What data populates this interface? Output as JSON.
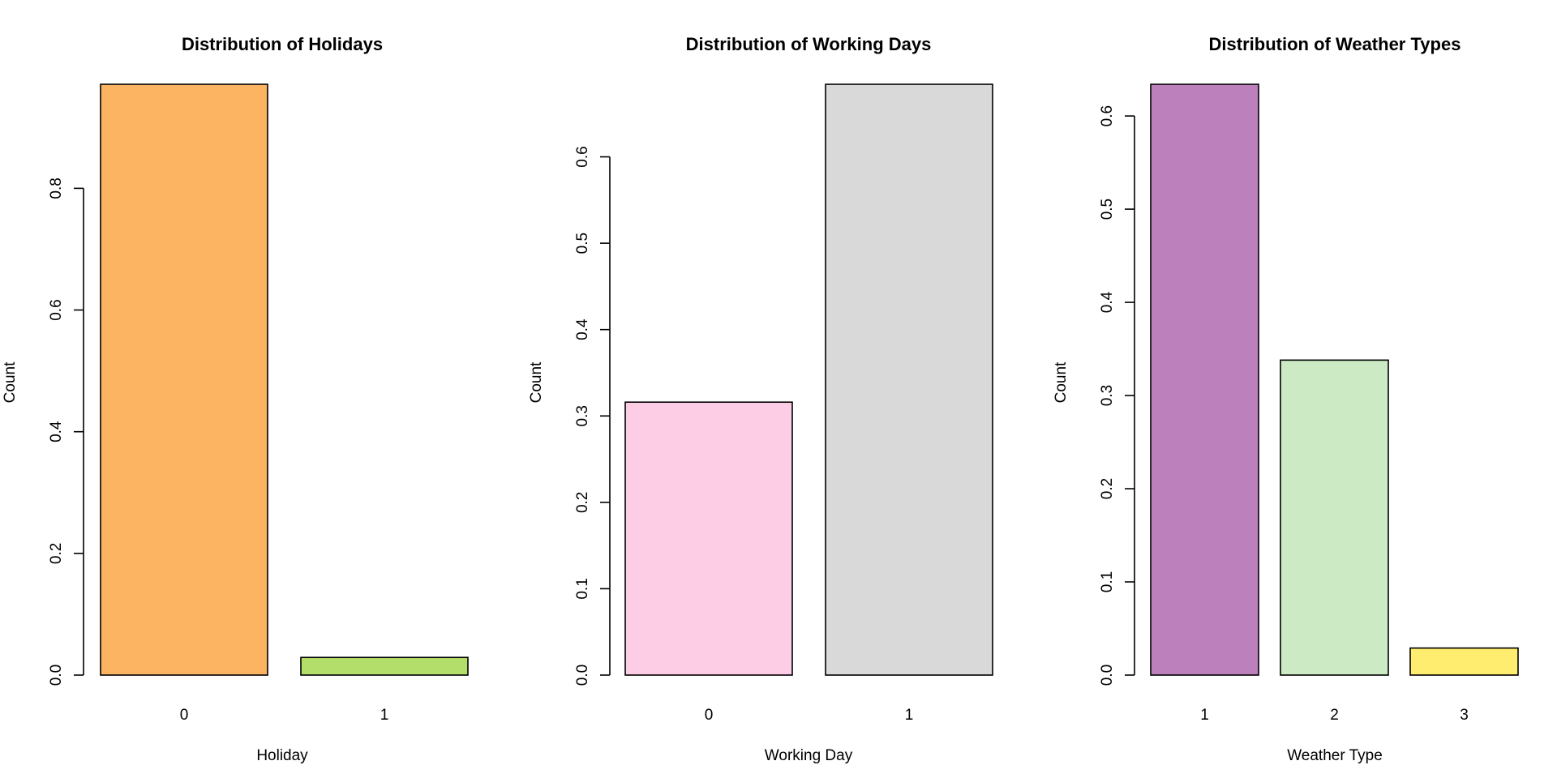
{
  "chart_data": [
    {
      "type": "bar",
      "title": "Distribution of Holidays",
      "xlabel": "Holiday",
      "ylabel": "Count",
      "categories": [
        "0",
        "1"
      ],
      "values": [
        0.971,
        0.029
      ],
      "colors": [
        "#FDB462",
        "#B3DE69"
      ],
      "ylim": [
        0,
        0.971
      ],
      "yticks": [
        0.0,
        0.2,
        0.4,
        0.6,
        0.8
      ],
      "ytick_labels": [
        "0.0",
        "0.2",
        "0.4",
        "0.6",
        "0.8"
      ]
    },
    {
      "type": "bar",
      "title": "Distribution of Working Days",
      "xlabel": "Working Day",
      "ylabel": "Count",
      "categories": [
        "0",
        "1"
      ],
      "values": [
        0.316,
        0.684
      ],
      "colors": [
        "#FCCDE5",
        "#D9D9D9"
      ],
      "ylim": [
        0,
        0.684
      ],
      "yticks": [
        0.0,
        0.1,
        0.2,
        0.3,
        0.4,
        0.5,
        0.6
      ],
      "ytick_labels": [
        "0.0",
        "0.1",
        "0.2",
        "0.3",
        "0.4",
        "0.5",
        "0.6"
      ]
    },
    {
      "type": "bar",
      "title": "Distribution of Weather Types",
      "xlabel": "Weather Type",
      "ylabel": "Count",
      "categories": [
        "1",
        "2",
        "3"
      ],
      "values": [
        0.634,
        0.338,
        0.029
      ],
      "colors": [
        "#BC80BD",
        "#CCEBC5",
        "#FFED6F"
      ],
      "ylim": [
        0,
        0.634
      ],
      "yticks": [
        0.0,
        0.1,
        0.2,
        0.3,
        0.4,
        0.5,
        0.6
      ],
      "ytick_labels": [
        "0.0",
        "0.1",
        "0.2",
        "0.3",
        "0.4",
        "0.5",
        "0.6"
      ]
    }
  ]
}
